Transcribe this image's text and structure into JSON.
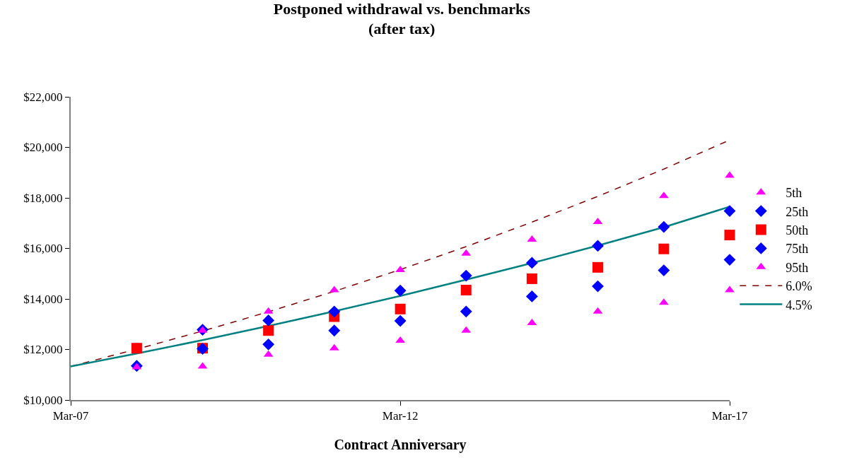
{
  "chart_data": {
    "type": "scatter",
    "title": "Postponed withdrawal vs. benchmarks\n(after tax)",
    "xlabel": "Contract Anniversary",
    "x": [
      "2008-03",
      "2009-03",
      "2010-03",
      "2011-03",
      "2012-03",
      "2013-03",
      "2014-03",
      "2015-03",
      "2016-03",
      "2017-03"
    ],
    "xlim": [
      "2007-03",
      "2017-03"
    ],
    "xticks": [
      {
        "value": "2007-03",
        "label": "Mar-07"
      },
      {
        "value": "2012-03",
        "label": "Mar-12"
      },
      {
        "value": "2017-03",
        "label": "Mar-17"
      }
    ],
    "ylim": [
      10000,
      22000
    ],
    "yticks": [
      {
        "value": 10000,
        "label": "$10,000"
      },
      {
        "value": 12000,
        "label": "$12,000"
      },
      {
        "value": 14000,
        "label": "$14,000"
      },
      {
        "value": 16000,
        "label": "$16,000"
      },
      {
        "value": 18000,
        "label": "$18,000"
      },
      {
        "value": 20000,
        "label": "$20,000"
      },
      {
        "value": 22000,
        "label": "$22,000"
      }
    ],
    "legend": "right",
    "series": [
      {
        "name": "5th",
        "color": "#ff00ff",
        "marker": "triangle",
        "values": [
          11300,
          11330,
          11800,
          12050,
          12350,
          12750,
          13050,
          13500,
          13850,
          14350
        ]
      },
      {
        "name": "25th",
        "color": "#0000ff",
        "marker": "diamond",
        "values": [
          11350,
          12030,
          12200,
          12750,
          13130,
          13500,
          14100,
          14500,
          15130,
          15550
        ]
      },
      {
        "name": "50th",
        "color": "#ff0000",
        "marker": "square",
        "values": [
          12050,
          12050,
          12750,
          13300,
          13600,
          14350,
          14800,
          15250,
          15980,
          16530
        ]
      },
      {
        "name": "75th",
        "color": "#0000ff",
        "marker": "diamond",
        "values": [
          null,
          12780,
          13150,
          13500,
          14330,
          14920,
          15430,
          16100,
          16850,
          17480
        ]
      },
      {
        "name": "95th",
        "color": "#ff00ff",
        "marker": "triangle",
        "values": [
          null,
          12750,
          13500,
          14350,
          15150,
          15800,
          16350,
          17050,
          18080,
          18880
        ]
      },
      {
        "name": "6.0%",
        "type": "line",
        "color": "#800000",
        "line_style": "dashed",
        "marker": "none",
        "x": [
          "2007-03",
          "2008-03",
          "2009-03",
          "2010-03",
          "2011-03",
          "2012-03",
          "2013-03",
          "2014-03",
          "2015-03",
          "2016-03",
          "2017-03"
        ],
        "values": [
          11330,
          12010,
          12730,
          13490,
          14300,
          15160,
          16070,
          17040,
          18060,
          19140,
          20290
        ]
      },
      {
        "name": "4.5%",
        "type": "line",
        "color": "#008080",
        "line_style": "solid",
        "marker": "none",
        "x": [
          "2007-03",
          "2008-03",
          "2009-03",
          "2010-03",
          "2011-03",
          "2012-03",
          "2013-03",
          "2014-03",
          "2015-03",
          "2016-03",
          "2017-03"
        ],
        "values": [
          11330,
          11840,
          12370,
          12930,
          13510,
          14120,
          14760,
          15420,
          16110,
          16840,
          17650
        ]
      }
    ]
  }
}
